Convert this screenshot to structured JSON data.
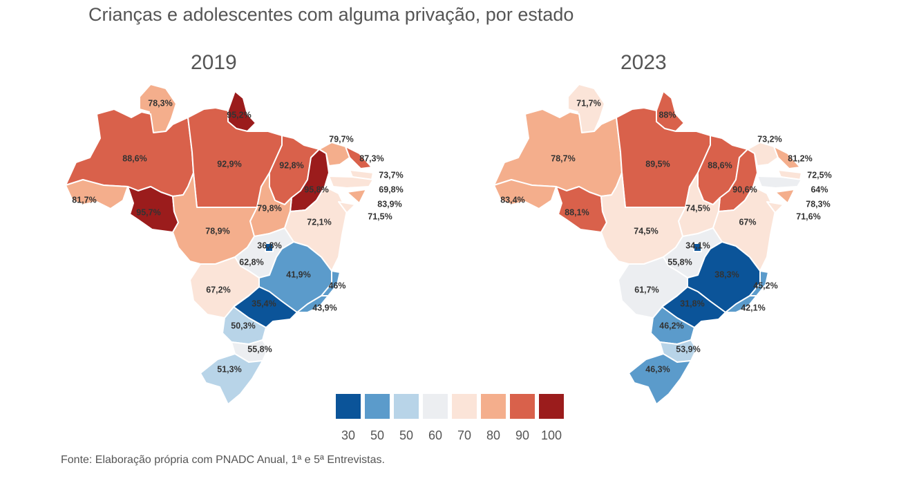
{
  "title": "Crianças e adolescentes com alguma privação, por estado",
  "source": "Fonte: Elaboração própria com PNADC Anual, 1ª e 5ª Entrevistas.",
  "legend": {
    "labels": [
      "30",
      "50",
      "50",
      "60",
      "70",
      "80",
      "90",
      "100"
    ],
    "colors": [
      "#0b5499",
      "#5b9bcb",
      "#b8d4e8",
      "#eceef1",
      "#fbe4d8",
      "#f4ae8c",
      "#d9614b",
      "#9b1c1c"
    ]
  },
  "maps": [
    {
      "year": "2019",
      "states": {
        "RR": "78,3%",
        "AM": "88,6%",
        "AP": "95,2%",
        "PA": "92,9%",
        "MA": "92,8%",
        "PI": "95,8%",
        "AC": "81,7%",
        "RO": "95,7%",
        "TO": "79,8%",
        "BA": "72,1%",
        "MT": "78,9%",
        "DF": "36,8%",
        "GO": "62,8%",
        "MG": "41,9%",
        "ES": "46%",
        "MS": "67,2%",
        "SP": "35,4%",
        "RJ": "43,9%",
        "PR": "50,3%",
        "SC": "55,8%",
        "RS": "51,3%",
        "CE": "79,7%",
        "RN": "87,3%",
        "PB": "73,7%",
        "PE": "69,8%",
        "AL": "83,9%",
        "SE": "71,5%"
      }
    },
    {
      "year": "2023",
      "states": {
        "RR": "71,7%",
        "AM": "78,7%",
        "AP": "88%",
        "PA": "89,5%",
        "MA": "88,6%",
        "PI": "90,6%",
        "AC": "83,4%",
        "RO": "88,1%",
        "TO": "74,5%",
        "BA": "67%",
        "MT": "74,5%",
        "DF": "34,1%",
        "GO": "55,8%",
        "MG": "38,3%",
        "ES": "45,2%",
        "MS": "61,7%",
        "SP": "31,8%",
        "RJ": "42,1%",
        "PR": "46,2%",
        "SC": "53,9%",
        "RS": "46,3%",
        "CE": "73,2%",
        "RN": "81,2%",
        "PB": "72,5%",
        "PE": "64%",
        "AL": "78,3%",
        "SE": "71,6%"
      }
    }
  ]
}
